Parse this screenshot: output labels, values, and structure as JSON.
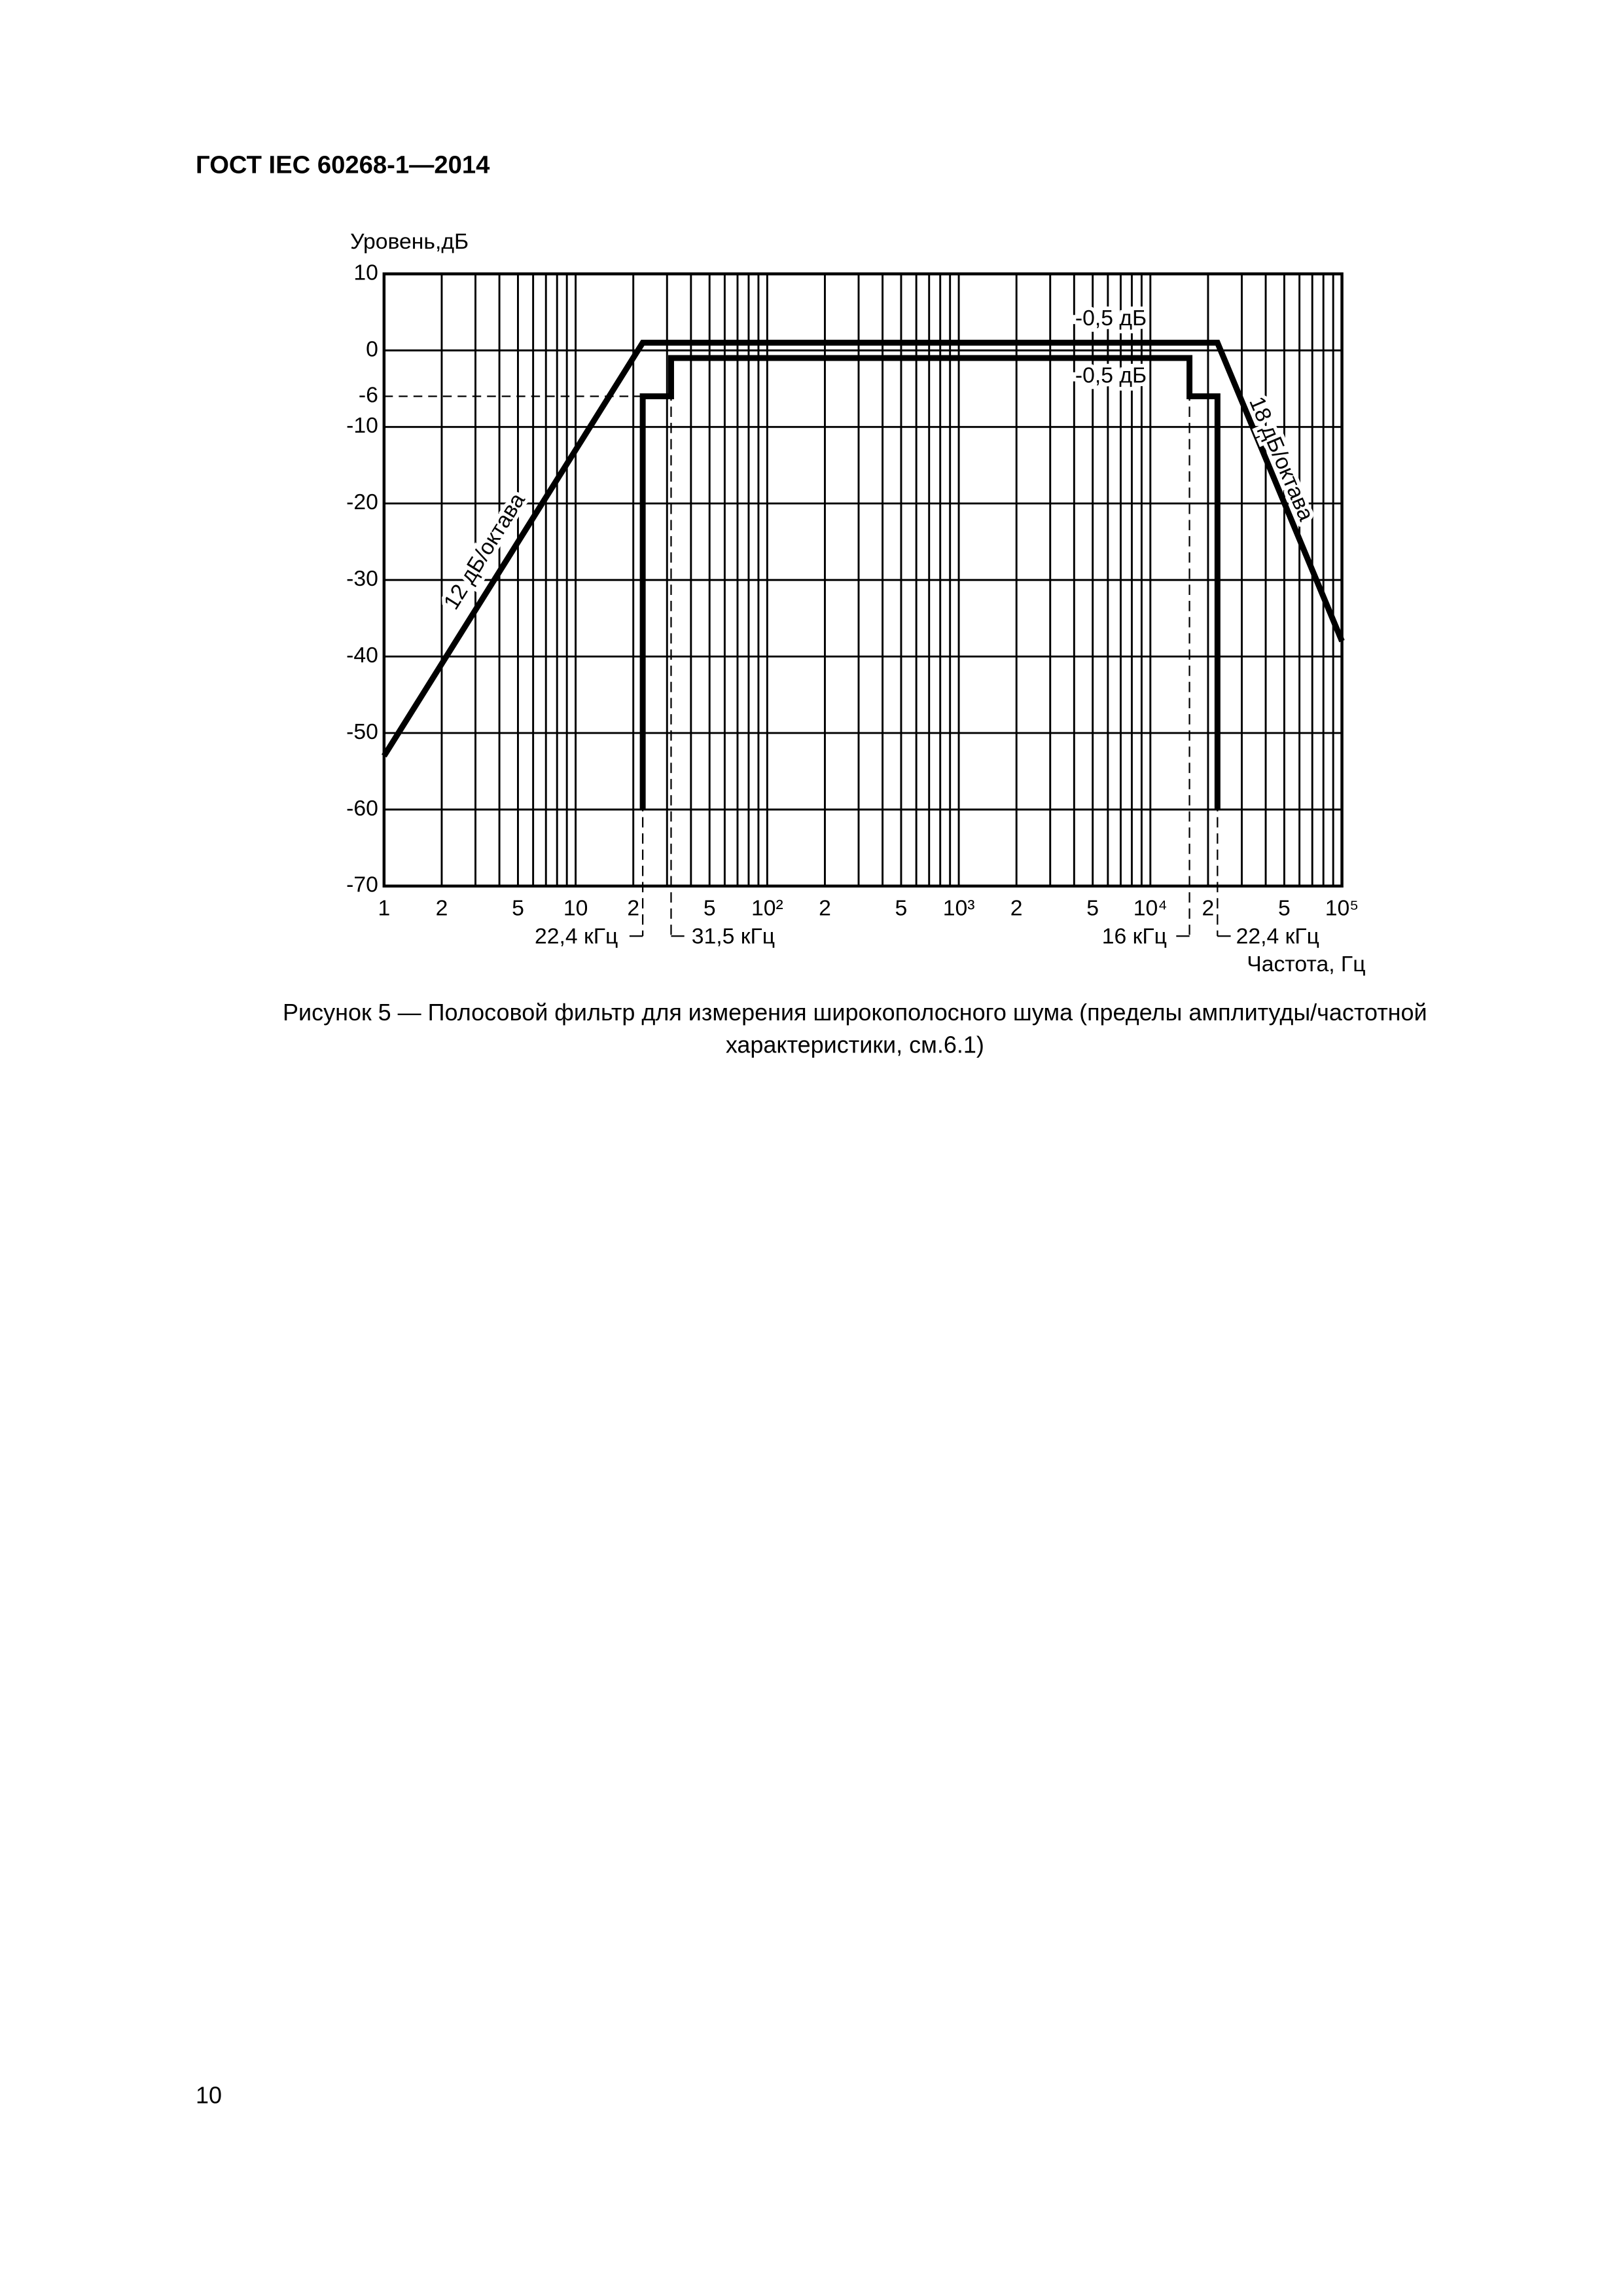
{
  "header": {
    "title": "ГОСТ IEC 60268-1—2014"
  },
  "chart_data": {
    "type": "line",
    "y_label": "Уровень,дБ",
    "x_label": "Частота, Гц",
    "xscale": "log",
    "grid": true,
    "color": "#000000",
    "xlim": [
      1,
      100000
    ],
    "ylim": [
      -70,
      10
    ],
    "xticks": [
      1,
      2,
      5,
      10,
      {
        "value": 20,
        "label": "2"
      },
      {
        "value": 50,
        "label": "5"
      },
      {
        "value": 100,
        "label": "10²"
      },
      {
        "value": 200,
        "label": "2"
      },
      {
        "value": 500,
        "label": "5"
      },
      {
        "value": 1000,
        "label": "10³"
      },
      {
        "value": 2000,
        "label": "2"
      },
      {
        "value": 5000,
        "label": "5"
      },
      {
        "value": 10000,
        "label": "10⁴"
      },
      {
        "value": 20000,
        "label": "2"
      },
      {
        "value": 50000,
        "label": "5"
      },
      {
        "value": 100000,
        "label": "10⁵"
      }
    ],
    "yticks": [
      10,
      0,
      -6,
      -10,
      -20,
      -30,
      -40,
      -50,
      -60,
      -70
    ],
    "series": [
      {
        "x": [
          1,
          22.4,
          22400,
          100000
        ],
        "values": [
          -53,
          1,
          1,
          -38
        ]
      },
      {
        "x": [
          22.4,
          22.4,
          31.5,
          31.5,
          16000,
          16000,
          22400,
          22400
        ],
        "values": [
          -60,
          -6,
          -6,
          -1,
          -1,
          -6,
          -6,
          -60
        ]
      }
    ],
    "annotations": [
      "-0,5 дБ",
      "-0,5 дБ",
      "12 дБ/октава",
      "18 дБ/октава",
      "22,4 кГц",
      "31,5 кГц",
      "16 кГц",
      "22,4 кГц"
    ]
  },
  "caption": [
    "Рисунок 5 — Полосовой фильтр для измерения широкополосного шума (пределы амплитуды/частотной",
    "характеристики, см.6.1)"
  ],
  "page_number": "10"
}
